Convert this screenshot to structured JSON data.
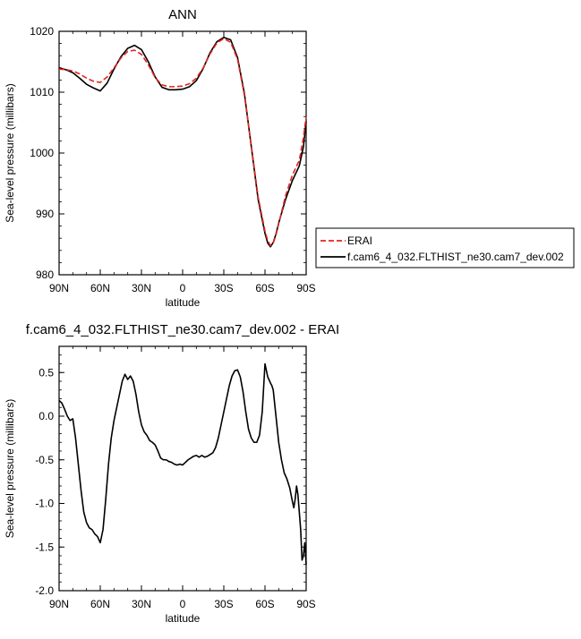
{
  "chart_data": [
    {
      "type": "line",
      "title": "ANN",
      "xlabel": "latitude",
      "ylabel": "Sea-level pressure (millibars)",
      "xlim": [
        90,
        -90
      ],
      "ylim": [
        980,
        1020
      ],
      "xticks": [
        {
          "value": 90,
          "label": "90N"
        },
        {
          "value": 60,
          "label": "60N"
        },
        {
          "value": 30,
          "label": "30N"
        },
        {
          "value": 0,
          "label": "0"
        },
        {
          "value": -30,
          "label": "30S"
        },
        {
          "value": -60,
          "label": "60S"
        },
        {
          "value": -90,
          "label": "90S"
        }
      ],
      "yticks": [
        {
          "value": 1020,
          "label": "1020"
        },
        {
          "value": 1010,
          "label": "1010"
        },
        {
          "value": 1000,
          "label": "1000"
        },
        {
          "value": 990,
          "label": "990"
        },
        {
          "value": 980,
          "label": "980"
        }
      ],
      "legend": {
        "placement": "outside right",
        "entries": [
          "ERAI",
          "f.cam6_4_032.FLTHIST_ne30.cam7_dev.002"
        ]
      },
      "series": [
        {
          "name": "ERAI",
          "color": "#e8231f",
          "dash": "dashed",
          "x": [
            90,
            85,
            80,
            75,
            70,
            65,
            60,
            55,
            50,
            45,
            40,
            35,
            30,
            25,
            20,
            15,
            10,
            5,
            0,
            -5,
            -10,
            -15,
            -20,
            -25,
            -30,
            -35,
            -40,
            -45,
            -50,
            -55,
            -60,
            -62,
            -64,
            -66,
            -68,
            -70,
            -75,
            -80,
            -85,
            -88,
            -90
          ],
          "y": [
            1013.8,
            1013.7,
            1013.5,
            1013.0,
            1012.3,
            1011.8,
            1011.6,
            1012.5,
            1014.0,
            1015.6,
            1016.7,
            1016.9,
            1016.2,
            1014.5,
            1012.4,
            1011.2,
            1010.9,
            1010.9,
            1011.0,
            1011.4,
            1012.3,
            1014.0,
            1016.3,
            1018.1,
            1018.8,
            1018.2,
            1015.4,
            1009.5,
            1001.3,
            992.8,
            987.2,
            985.6,
            984.8,
            985.2,
            986.5,
            988.4,
            993.0,
            996.4,
            998.8,
            1002.5,
            1006.0
          ]
        },
        {
          "name": "f.cam6_4_032.FLTHIST_ne30.cam7_dev.002",
          "color": "#000000",
          "dash": "solid",
          "x": [
            90,
            85,
            80,
            75,
            70,
            65,
            60,
            55,
            50,
            45,
            40,
            35,
            30,
            25,
            20,
            15,
            10,
            5,
            0,
            -5,
            -10,
            -15,
            -20,
            -25,
            -30,
            -35,
            -40,
            -45,
            -50,
            -55,
            -60,
            -62,
            -64,
            -66,
            -68,
            -70,
            -75,
            -80,
            -85,
            -88,
            -90
          ],
          "y": [
            1014.0,
            1013.7,
            1013.2,
            1012.3,
            1011.3,
            1010.7,
            1010.2,
            1011.5,
            1013.8,
            1015.8,
            1017.2,
            1017.7,
            1017.0,
            1015.0,
            1012.5,
            1010.8,
            1010.4,
            1010.4,
            1010.5,
            1010.9,
            1011.9,
            1013.9,
            1016.5,
            1018.3,
            1019.0,
            1018.6,
            1015.7,
            1009.8,
            1001.1,
            992.4,
            986.8,
            985.2,
            984.6,
            985.3,
            986.7,
            988.5,
            992.4,
            995.5,
            997.9,
            1001.0,
            1005.2
          ]
        }
      ]
    },
    {
      "type": "line",
      "title": "f.cam6_4_032.FLTHIST_ne30.cam7_dev.002 - ERAI",
      "xlabel": "latitude",
      "ylabel": "Sea-level pressure (millibars)",
      "xlim": [
        90,
        -90
      ],
      "ylim": [
        -2.0,
        0.8
      ],
      "xticks": [
        {
          "value": 90,
          "label": "90N"
        },
        {
          "value": 60,
          "label": "60N"
        },
        {
          "value": 30,
          "label": "30N"
        },
        {
          "value": 0,
          "label": "0"
        },
        {
          "value": -30,
          "label": "30S"
        },
        {
          "value": -60,
          "label": "60S"
        },
        {
          "value": -90,
          "label": "90S"
        }
      ],
      "yticks": [
        {
          "value": 0.5,
          "label": "0.5"
        },
        {
          "value": 0.0,
          "label": "0.0"
        },
        {
          "value": -0.5,
          "label": "-0.5"
        },
        {
          "value": -1.0,
          "label": "-1.0"
        },
        {
          "value": -1.5,
          "label": "-1.5"
        },
        {
          "value": -2.0,
          "label": "-2.0"
        }
      ],
      "series": [
        {
          "color": "#000000",
          "dash": "solid",
          "x": [
            90,
            88,
            86,
            84,
            82,
            80,
            78,
            76,
            74,
            72,
            70,
            68,
            66,
            64,
            62,
            60,
            58,
            56,
            54,
            52,
            50,
            48,
            46,
            44,
            42,
            40,
            38,
            36,
            34,
            32,
            30,
            28,
            26,
            24,
            22,
            20,
            18,
            16,
            14,
            12,
            10,
            8,
            6,
            4,
            2,
            0,
            -2,
            -4,
            -6,
            -8,
            -10,
            -12,
            -14,
            -16,
            -18,
            -20,
            -22,
            -24,
            -26,
            -28,
            -30,
            -32,
            -34,
            -36,
            -38,
            -40,
            -42,
            -44,
            -46,
            -48,
            -50,
            -52,
            -54,
            -56,
            -58,
            -60,
            -62,
            -64,
            -65,
            -66,
            -68,
            -70,
            -72,
            -74,
            -76,
            -78,
            -80,
            -81,
            -82,
            -83,
            -84,
            -85,
            -86,
            -87,
            -88,
            -89,
            -90
          ],
          "y": [
            0.18,
            0.15,
            0.08,
            0.0,
            -0.05,
            -0.03,
            -0.25,
            -0.55,
            -0.85,
            -1.1,
            -1.22,
            -1.28,
            -1.3,
            -1.35,
            -1.38,
            -1.45,
            -1.3,
            -0.95,
            -0.55,
            -0.25,
            -0.05,
            0.1,
            0.25,
            0.4,
            0.48,
            0.42,
            0.46,
            0.4,
            0.25,
            0.05,
            -0.1,
            -0.18,
            -0.22,
            -0.28,
            -0.3,
            -0.33,
            -0.4,
            -0.48,
            -0.5,
            -0.5,
            -0.52,
            -0.53,
            -0.55,
            -0.56,
            -0.55,
            -0.56,
            -0.53,
            -0.5,
            -0.48,
            -0.46,
            -0.45,
            -0.47,
            -0.45,
            -0.47,
            -0.46,
            -0.44,
            -0.42,
            -0.36,
            -0.25,
            -0.1,
            0.05,
            0.2,
            0.35,
            0.46,
            0.52,
            0.53,
            0.45,
            0.28,
            0.05,
            -0.15,
            -0.25,
            -0.3,
            -0.3,
            -0.22,
            0.05,
            0.6,
            0.45,
            0.38,
            0.35,
            0.3,
            0.0,
            -0.3,
            -0.5,
            -0.65,
            -0.72,
            -0.82,
            -0.98,
            -1.05,
            -0.95,
            -0.8,
            -0.9,
            -1.1,
            -1.3,
            -1.65,
            -1.6,
            -1.45,
            -1.7
          ]
        }
      ]
    }
  ]
}
